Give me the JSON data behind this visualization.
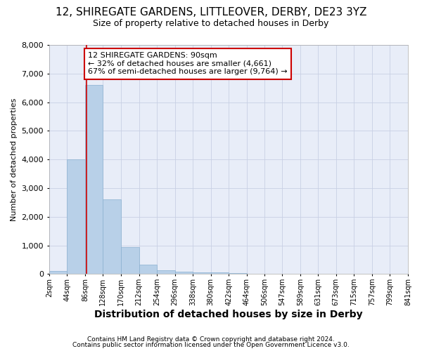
{
  "title": "12, SHIREGATE GARDENS, LITTLEOVER, DERBY, DE23 3YZ",
  "subtitle": "Size of property relative to detached houses in Derby",
  "xlabel": "Distribution of detached houses by size in Derby",
  "ylabel": "Number of detached properties",
  "footer_line1": "Contains HM Land Registry data © Crown copyright and database right 2024.",
  "footer_line2": "Contains public sector information licensed under the Open Government Licence v3.0.",
  "property_label": "12 SHIREGATE GARDENS: 90sqm",
  "annotation_line1": "← 32% of detached houses are smaller (4,661)",
  "annotation_line2": "67% of semi-detached houses are larger (9,764) →",
  "bin_edges": [
    2,
    44,
    86,
    128,
    170,
    212,
    254,
    296,
    338,
    380,
    422,
    464,
    506,
    547,
    589,
    631,
    673,
    715,
    757,
    799,
    841
  ],
  "bar_heights": [
    100,
    4000,
    6600,
    2600,
    950,
    330,
    130,
    90,
    70,
    55,
    30,
    20,
    15,
    10,
    8,
    5,
    4,
    3,
    2,
    2
  ],
  "bar_color": "#b8d0e8",
  "bar_edge_color": "#8ab0d0",
  "red_line_x": 90,
  "annotation_box_color": "#cc0000",
  "background_color": "#e8edf8",
  "grid_color": "#c8d0e4",
  "ylim": [
    0,
    8000
  ],
  "yticks": [
    0,
    1000,
    2000,
    3000,
    4000,
    5000,
    6000,
    7000,
    8000
  ],
  "title_fontsize": 11,
  "subtitle_fontsize": 9,
  "xlabel_fontsize": 10,
  "ylabel_fontsize": 8,
  "xtick_fontsize": 7,
  "ytick_fontsize": 8,
  "footer_fontsize": 6.5
}
